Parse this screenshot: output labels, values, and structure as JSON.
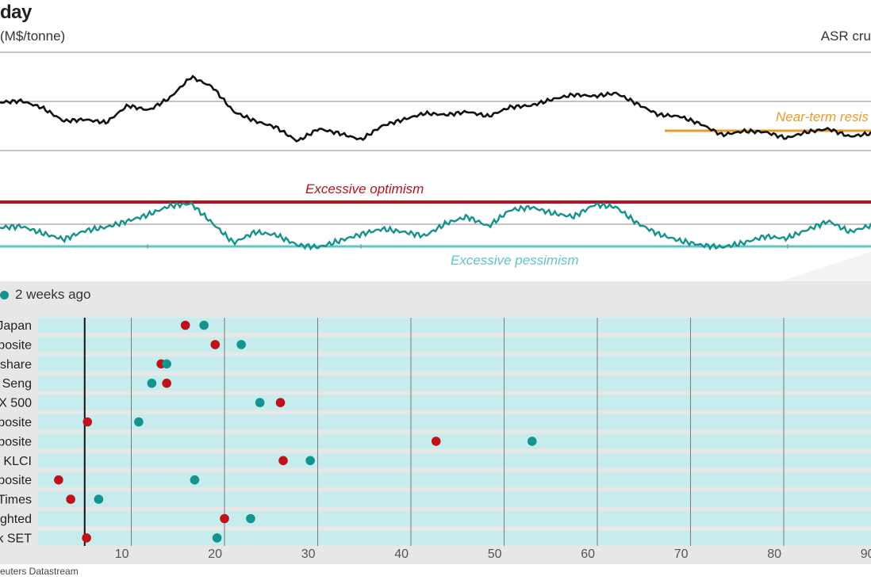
{
  "header": {
    "title": "day",
    "unit": "(M$/tonne)",
    "series_label": "ASR cru"
  },
  "annotations": {
    "near_term_resistance": "Near-term resis",
    "excessive_optimism": "Excessive optimism",
    "excessive_pessimism": "Excessive pessimism"
  },
  "legend": {
    "two_weeks_ago": "2 weeks ago"
  },
  "colors": {
    "price_line": "#111111",
    "resistance": "#ea9a2b",
    "optimism": "#b5121b",
    "pessimism": "#5fc4c4",
    "oscillator": "#14928b",
    "now_dot": "#c1121a",
    "two_weeks_dot": "#13948e",
    "row_band": "#c6ecee",
    "panel_bg": "#e7e7e7"
  },
  "source": "euters Datastream",
  "chart_data": [
    {
      "type": "line",
      "name": "price",
      "y": [
        0.62,
        0.64,
        0.55,
        0.38,
        0.4,
        0.36,
        0.58,
        0.52,
        0.68,
        0.95,
        0.82,
        0.5,
        0.38,
        0.3,
        0.12,
        0.28,
        0.22,
        0.14,
        0.32,
        0.4,
        0.48,
        0.46,
        0.5,
        0.44,
        0.56,
        0.58,
        0.66,
        0.72,
        0.7,
        0.74,
        0.6,
        0.46,
        0.44,
        0.34,
        0.2,
        0.25,
        0.24,
        0.16,
        0.24,
        0.28,
        0.18,
        0.22
      ]
    },
    {
      "type": "line",
      "name": "oscillator",
      "y": [
        0.45,
        0.48,
        0.32,
        0.18,
        0.38,
        0.46,
        0.6,
        0.75,
        0.95,
        1.0,
        0.55,
        0.1,
        0.35,
        0.28,
        0.05,
        0.0,
        0.15,
        0.3,
        0.42,
        0.35,
        0.26,
        0.55,
        0.7,
        0.48,
        0.85,
        0.92,
        0.78,
        0.7,
        0.98,
        0.92,
        0.55,
        0.3,
        0.15,
        0.05,
        0.0,
        0.1,
        0.25,
        0.2,
        0.4,
        0.6,
        0.35,
        0.5
      ]
    },
    {
      "type": "scatter",
      "xlim": [
        0,
        95
      ],
      "x_ticks": [
        10,
        20,
        30,
        40,
        50,
        60,
        70,
        80,
        90
      ],
      "threshold": 5,
      "categories": [
        "Japan",
        "posite",
        "share",
        "Seng",
        "X 500",
        "posite",
        "posite",
        "KLCI",
        "posite",
        "Times",
        "ghted",
        "k SET"
      ],
      "series": [
        {
          "values": [
            15.8,
            19.0,
            13.2,
            13.8,
            26.0,
            5.3,
            42.7,
            26.3,
            2.2,
            3.5,
            20.0,
            5.2
          ]
        },
        {
          "name": "2 weeks ago",
          "values": [
            17.8,
            21.8,
            13.8,
            12.2,
            23.8,
            10.8,
            53.0,
            29.2,
            16.8,
            6.5,
            22.8,
            19.2
          ]
        }
      ]
    }
  ]
}
